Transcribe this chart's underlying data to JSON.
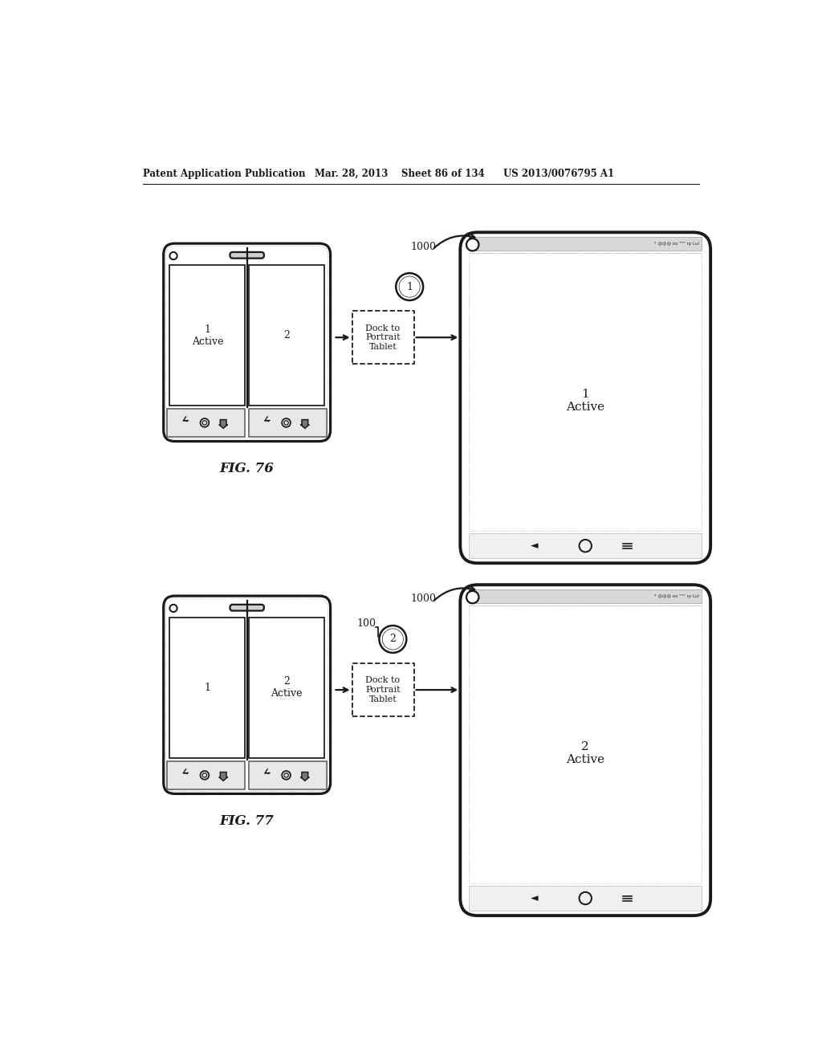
{
  "header_text": "Patent Application Publication",
  "header_date": "Mar. 28, 2013",
  "header_sheet": "Sheet 86 of 134",
  "header_patent": "US 2013/0076795 A1",
  "fig76_label": "FIG. 76",
  "fig77_label": "FIG. 77",
  "dock_box_text_76": "Dock to\nPortrait\nTablet",
  "dock_box_text_77": "Dock to\nPortrait\nTablet",
  "label_1000_76": "1000",
  "label_1000_77": "1000",
  "label_100_77": "100",
  "circle_label_76": "1",
  "circle_label_77": "2",
  "tablet_label_76": "1\nActive",
  "tablet_label_77": "2\nActive",
  "bg_color": "#ffffff",
  "line_color": "#1a1a1a",
  "line_width": 1.8
}
